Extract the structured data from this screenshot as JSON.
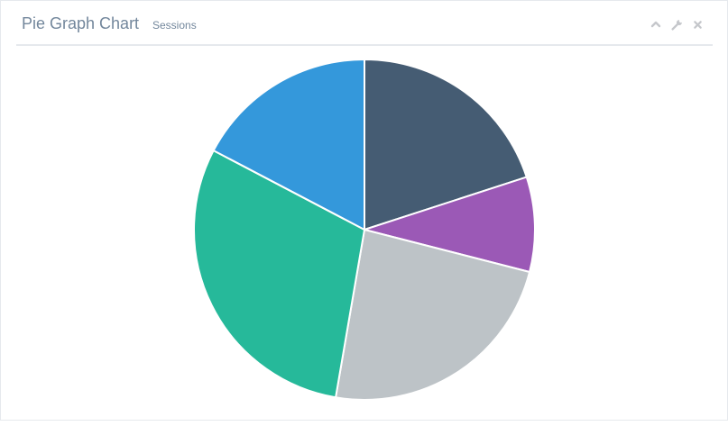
{
  "panel": {
    "title": "Pie Graph Chart",
    "subtitle": "Sessions"
  },
  "toolbar": {
    "icons": [
      "chevron-up-icon",
      "wrench-icon",
      "close-icon"
    ]
  },
  "colors": {
    "text": "#73879c",
    "icon": "#c5c7cb",
    "divider": "#e6e9ed"
  },
  "chart_data": {
    "type": "pie",
    "title": "",
    "start_angle_deg": 0,
    "direction": "clockwise",
    "legend": "none",
    "slices": [
      {
        "value": 20.0,
        "color": "#455c73"
      },
      {
        "value": 9.0,
        "color": "#9b59b6"
      },
      {
        "value": 23.7,
        "color": "#bdc3c7"
      },
      {
        "value": 30.0,
        "color": "#26b99a"
      },
      {
        "value": 17.3,
        "color": "#3498db"
      }
    ]
  }
}
